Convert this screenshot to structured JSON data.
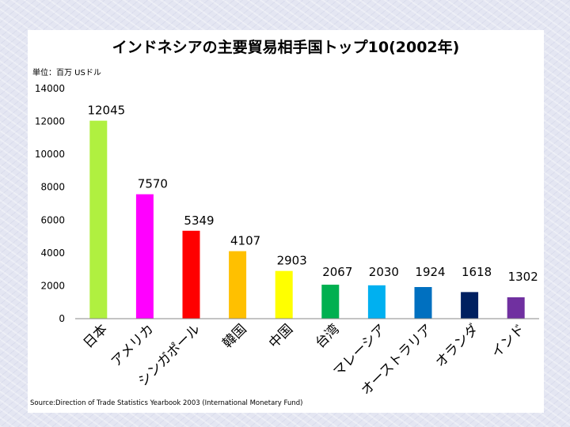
{
  "chart_data": {
    "type": "bar",
    "title": "インドネシアの主要貿易相手国トップ10(2002年)",
    "unit_label": "単位：百万 USドル",
    "source": "Source:Direction of Trade Statistics Yearbook 2003 (International Monetary Fund)",
    "ylim": [
      0,
      14000
    ],
    "y_ticks": [
      0,
      2000,
      4000,
      6000,
      8000,
      10000,
      12000,
      14000
    ],
    "categories": [
      "日本",
      "アメリカ",
      "シンガポール",
      "韓国",
      "中国",
      "台湾",
      "マレーシア",
      "オーストラリア",
      "オランダ",
      "インド"
    ],
    "values": [
      12045,
      7570,
      5349,
      4107,
      2903,
      2067,
      2030,
      1924,
      1618,
      1302
    ],
    "colors": [
      "#b0f040",
      "#ff00ff",
      "#ff0000",
      "#ffc000",
      "#ffff00",
      "#00b050",
      "#00b0f0",
      "#0070c0",
      "#002060",
      "#7030a0"
    ],
    "xlabel": "",
    "ylabel": ""
  }
}
